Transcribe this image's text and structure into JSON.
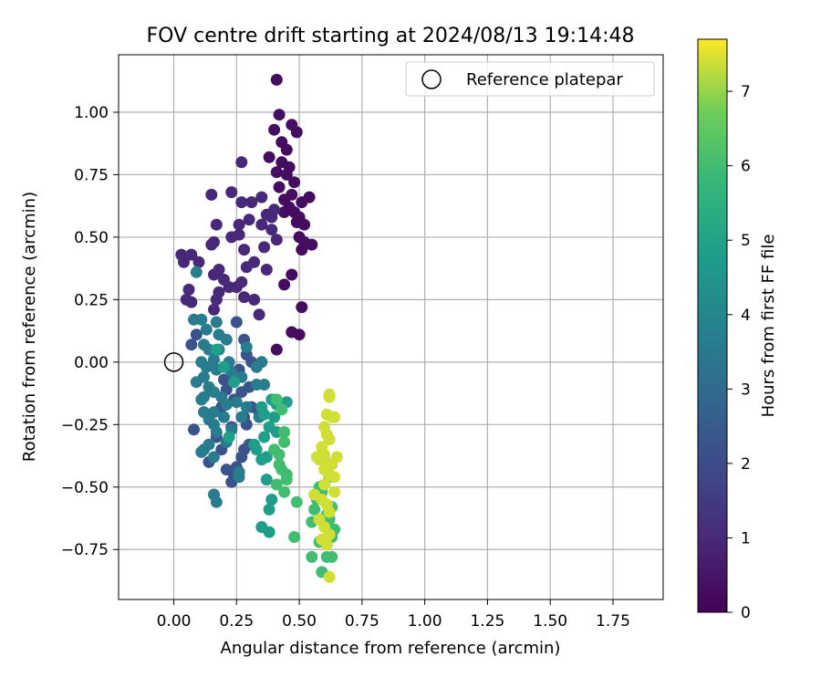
{
  "chart_data": {
    "type": "scatter",
    "title": "FOV centre drift starting at 2024/08/13 19:14:48",
    "xlabel": "Angular distance from reference (arcmin)",
    "ylabel": "Rotation from reference (arcmin)",
    "xlim": [
      -0.22,
      1.95
    ],
    "ylim": [
      -0.95,
      1.23
    ],
    "xticks": [
      "0.00",
      "0.25",
      "0.50",
      "0.75",
      "1.00",
      "1.25",
      "1.50",
      "1.75"
    ],
    "yticks": [
      "1.00",
      "0.75",
      "0.50",
      "0.25",
      "0.00",
      "−0.25",
      "−0.50",
      "−0.75"
    ],
    "xtick_values": [
      0,
      0.25,
      0.5,
      0.75,
      1.0,
      1.25,
      1.5,
      1.75
    ],
    "ytick_values": [
      1.0,
      0.75,
      0.5,
      0.25,
      0,
      -0.25,
      -0.5,
      -0.75
    ],
    "grid": true,
    "legend": {
      "placement": "top-right",
      "entries": [
        "Reference platepar"
      ]
    },
    "reference_point": {
      "x": 0.0,
      "y": 0.0,
      "marker": "open-circle"
    },
    "colorbar": {
      "label": "Hours from first FF file",
      "ticks": [
        "0",
        "1",
        "2",
        "3",
        "4",
        "5",
        "6",
        "7"
      ],
      "range": [
        0,
        7.7
      ],
      "colormap": "viridis"
    },
    "groups": [
      {
        "hours": 0.3,
        "points": [
          [
            0.41,
            1.13
          ],
          [
            0.42,
            0.99
          ],
          [
            0.38,
            0.82
          ],
          [
            0.43,
            0.8
          ],
          [
            0.45,
            0.85
          ],
          [
            0.47,
            0.95
          ],
          [
            0.49,
            0.92
          ],
          [
            0.41,
            0.76
          ],
          [
            0.45,
            0.75
          ],
          [
            0.48,
            0.72
          ],
          [
            0.44,
            0.65
          ],
          [
            0.46,
            0.62
          ],
          [
            0.48,
            0.6
          ],
          [
            0.5,
            0.58
          ],
          [
            0.52,
            0.55
          ],
          [
            0.5,
            0.5
          ],
          [
            0.52,
            0.48
          ],
          [
            0.55,
            0.47
          ],
          [
            0.42,
            0.7
          ],
          [
            0.47,
            0.67
          ],
          [
            0.51,
            0.64
          ],
          [
            0.54,
            0.66
          ],
          [
            0.49,
            0.56
          ],
          [
            0.44,
            0.6
          ],
          [
            0.43,
            0.88
          ],
          [
            0.4,
            0.93
          ],
          [
            0.46,
            0.78
          ],
          [
            0.51,
            0.45
          ],
          [
            0.47,
            0.35
          ],
          [
            0.44,
            0.31
          ],
          [
            0.51,
            0.22
          ],
          [
            0.47,
            0.12
          ],
          [
            0.5,
            0.11
          ],
          [
            0.41,
            0.05
          ]
        ]
      },
      {
        "hours": 1.0,
        "points": [
          [
            0.27,
            0.8
          ],
          [
            0.23,
            0.68
          ],
          [
            0.27,
            0.64
          ],
          [
            0.15,
            0.67
          ],
          [
            0.31,
            0.64
          ],
          [
            0.35,
            0.66
          ],
          [
            0.3,
            0.57
          ],
          [
            0.26,
            0.55
          ],
          [
            0.26,
            0.51
          ],
          [
            0.23,
            0.5
          ],
          [
            0.17,
            0.55
          ],
          [
            0.16,
            0.48
          ],
          [
            0.28,
            0.45
          ],
          [
            0.36,
            0.46
          ],
          [
            0.39,
            0.53
          ],
          [
            0.35,
            0.55
          ],
          [
            0.37,
            0.59
          ],
          [
            0.4,
            0.61
          ],
          [
            0.32,
            0.4
          ],
          [
            0.37,
            0.37
          ],
          [
            0.41,
            0.49
          ],
          [
            0.39,
            0.58
          ],
          [
            0.03,
            0.43
          ],
          [
            0.04,
            0.42
          ],
          [
            0.07,
            0.43
          ],
          [
            0.04,
            0.4
          ],
          [
            0.1,
            0.4
          ],
          [
            0.16,
            0.35
          ],
          [
            0.18,
            0.37
          ],
          [
            0.22,
            0.3
          ],
          [
            0.25,
            0.3
          ],
          [
            0.27,
            0.32
          ],
          [
            0.2,
            0.33
          ],
          [
            0.17,
            0.25
          ],
          [
            0.18,
            0.28
          ],
          [
            0.06,
            0.29
          ],
          [
            0.07,
            0.24
          ],
          [
            0.05,
            0.25
          ],
          [
            0.28,
            0.26
          ],
          [
            0.32,
            0.25
          ],
          [
            0.16,
            0.21
          ],
          [
            0.34,
            0.19
          ],
          [
            0.15,
            0.47
          ],
          [
            0.29,
            0.38
          ]
        ]
      },
      {
        "hours": 2.2,
        "points": [
          [
            0.25,
            0.16
          ],
          [
            0.28,
            0.09
          ],
          [
            0.29,
            0.03
          ],
          [
            0.31,
            0.0
          ],
          [
            0.26,
            -0.03
          ],
          [
            0.23,
            -0.05
          ],
          [
            0.2,
            -0.07
          ],
          [
            0.21,
            -0.11
          ],
          [
            0.24,
            -0.15
          ],
          [
            0.27,
            -0.12
          ],
          [
            0.3,
            -0.1
          ],
          [
            0.31,
            -0.18
          ],
          [
            0.28,
            -0.22
          ],
          [
            0.29,
            -0.25
          ],
          [
            0.3,
            -0.33
          ],
          [
            0.28,
            -0.35
          ],
          [
            0.27,
            -0.38
          ],
          [
            0.25,
            -0.42
          ],
          [
            0.24,
            -0.45
          ],
          [
            0.21,
            -0.43
          ],
          [
            0.19,
            -0.35
          ],
          [
            0.17,
            -0.3
          ],
          [
            0.07,
            0.07
          ],
          [
            0.09,
            0.11
          ],
          [
            0.08,
            -0.27
          ],
          [
            0.14,
            -0.4
          ],
          [
            0.23,
            -0.48
          ],
          [
            0.23,
            -0.26
          ],
          [
            0.19,
            -0.18
          ],
          [
            0.34,
            -0.2
          ]
        ]
      },
      {
        "hours": 3.6,
        "points": [
          [
            0.09,
            0.36
          ],
          [
            0.08,
            0.17
          ],
          [
            0.11,
            0.17
          ],
          [
            0.13,
            0.13
          ],
          [
            0.17,
            0.16
          ],
          [
            0.18,
            0.11
          ],
          [
            0.21,
            0.09
          ],
          [
            0.29,
            0.06
          ],
          [
            0.12,
            0.07
          ],
          [
            0.14,
            0.05
          ],
          [
            0.18,
            0.05
          ],
          [
            0.16,
            0.01
          ],
          [
            0.11,
            0.0
          ],
          [
            0.13,
            -0.02
          ],
          [
            0.17,
            -0.03
          ],
          [
            0.22,
            0.0
          ],
          [
            0.23,
            -0.04
          ],
          [
            0.27,
            -0.06
          ],
          [
            0.33,
            -0.02
          ],
          [
            0.35,
            0.0
          ],
          [
            0.36,
            -0.09
          ],
          [
            0.33,
            -0.09
          ],
          [
            0.09,
            -0.08
          ],
          [
            0.12,
            -0.06
          ],
          [
            0.14,
            -0.1
          ],
          [
            0.16,
            -0.12
          ],
          [
            0.19,
            -0.14
          ],
          [
            0.11,
            -0.15
          ],
          [
            0.12,
            -0.2
          ],
          [
            0.14,
            -0.23
          ],
          [
            0.16,
            -0.2
          ],
          [
            0.2,
            -0.22
          ],
          [
            0.21,
            -0.17
          ],
          [
            0.25,
            -0.16
          ],
          [
            0.27,
            -0.22
          ],
          [
            0.29,
            -0.18
          ],
          [
            0.17,
            -0.28
          ],
          [
            0.21,
            -0.32
          ],
          [
            0.12,
            -0.35
          ],
          [
            0.14,
            -0.33
          ],
          [
            0.11,
            -0.36
          ],
          [
            0.16,
            -0.38
          ],
          [
            0.26,
            -0.46
          ],
          [
            0.26,
            -0.44
          ],
          [
            0.16,
            -0.53
          ],
          [
            0.17,
            -0.56
          ],
          [
            0.16,
            -0.25
          ],
          [
            0.12,
            -0.14
          ],
          [
            0.23,
            -0.27
          ],
          [
            0.34,
            -0.22
          ]
        ]
      },
      {
        "hours": 4.8,
        "points": [
          [
            0.17,
            0.05
          ],
          [
            0.2,
            -0.02
          ],
          [
            0.24,
            -0.08
          ],
          [
            0.22,
            -0.3
          ],
          [
            0.35,
            -0.18
          ],
          [
            0.36,
            -0.21
          ],
          [
            0.39,
            -0.15
          ],
          [
            0.41,
            -0.17
          ],
          [
            0.45,
            -0.16
          ],
          [
            0.37,
            -0.38
          ],
          [
            0.35,
            -0.39
          ],
          [
            0.33,
            -0.35
          ],
          [
            0.32,
            -0.33
          ],
          [
            0.37,
            -0.47
          ],
          [
            0.38,
            -0.59
          ],
          [
            0.39,
            -0.55
          ],
          [
            0.35,
            -0.66
          ],
          [
            0.38,
            -0.68
          ],
          [
            0.4,
            -0.22
          ],
          [
            0.38,
            -0.26
          ],
          [
            0.41,
            -0.28
          ],
          [
            0.36,
            -0.3
          ]
        ]
      },
      {
        "hours": 6.0,
        "points": [
          [
            0.41,
            -0.15
          ],
          [
            0.43,
            -0.19
          ],
          [
            0.4,
            -0.35
          ],
          [
            0.42,
            -0.37
          ],
          [
            0.44,
            -0.32
          ],
          [
            0.43,
            -0.43
          ],
          [
            0.45,
            -0.47
          ],
          [
            0.41,
            -0.49
          ],
          [
            0.44,
            -0.52
          ],
          [
            0.42,
            -0.41
          ],
          [
            0.44,
            -0.28
          ],
          [
            0.45,
            -0.45
          ],
          [
            0.49,
            -0.56
          ],
          [
            0.48,
            -0.7
          ],
          [
            0.55,
            -0.64
          ],
          [
            0.56,
            -0.59
          ],
          [
            0.57,
            -0.55
          ],
          [
            0.58,
            -0.5
          ],
          [
            0.55,
            -0.78
          ],
          [
            0.58,
            -0.72
          ],
          [
            0.59,
            -0.84
          ],
          [
            0.61,
            -0.61
          ],
          [
            0.62,
            -0.63
          ],
          [
            0.63,
            -0.7
          ],
          [
            0.64,
            -0.67
          ],
          [
            0.61,
            -0.78
          ],
          [
            0.63,
            -0.78
          ],
          [
            0.59,
            -0.52
          ],
          [
            0.62,
            -0.46
          ],
          [
            0.63,
            -0.58
          ]
        ]
      },
      {
        "hours": 7.4,
        "points": [
          [
            0.62,
            -0.13
          ],
          [
            0.62,
            -0.14
          ],
          [
            0.61,
            -0.21
          ],
          [
            0.63,
            -0.22
          ],
          [
            0.64,
            -0.22
          ],
          [
            0.6,
            -0.26
          ],
          [
            0.61,
            -0.29
          ],
          [
            0.62,
            -0.31
          ],
          [
            0.59,
            -0.34
          ],
          [
            0.6,
            -0.37
          ],
          [
            0.57,
            -0.38
          ],
          [
            0.58,
            -0.39
          ],
          [
            0.61,
            -0.4
          ],
          [
            0.63,
            -0.41
          ],
          [
            0.6,
            -0.43
          ],
          [
            0.62,
            -0.45
          ],
          [
            0.64,
            -0.46
          ],
          [
            0.64,
            -0.52
          ],
          [
            0.59,
            -0.55
          ],
          [
            0.61,
            -0.57
          ],
          [
            0.62,
            -0.6
          ],
          [
            0.58,
            -0.63
          ],
          [
            0.6,
            -0.66
          ],
          [
            0.62,
            -0.69
          ],
          [
            0.59,
            -0.71
          ],
          [
            0.61,
            -0.73
          ],
          [
            0.56,
            -0.53
          ],
          [
            0.65,
            -0.38
          ],
          [
            0.6,
            -0.49
          ],
          [
            0.62,
            -0.86
          ]
        ]
      }
    ]
  }
}
